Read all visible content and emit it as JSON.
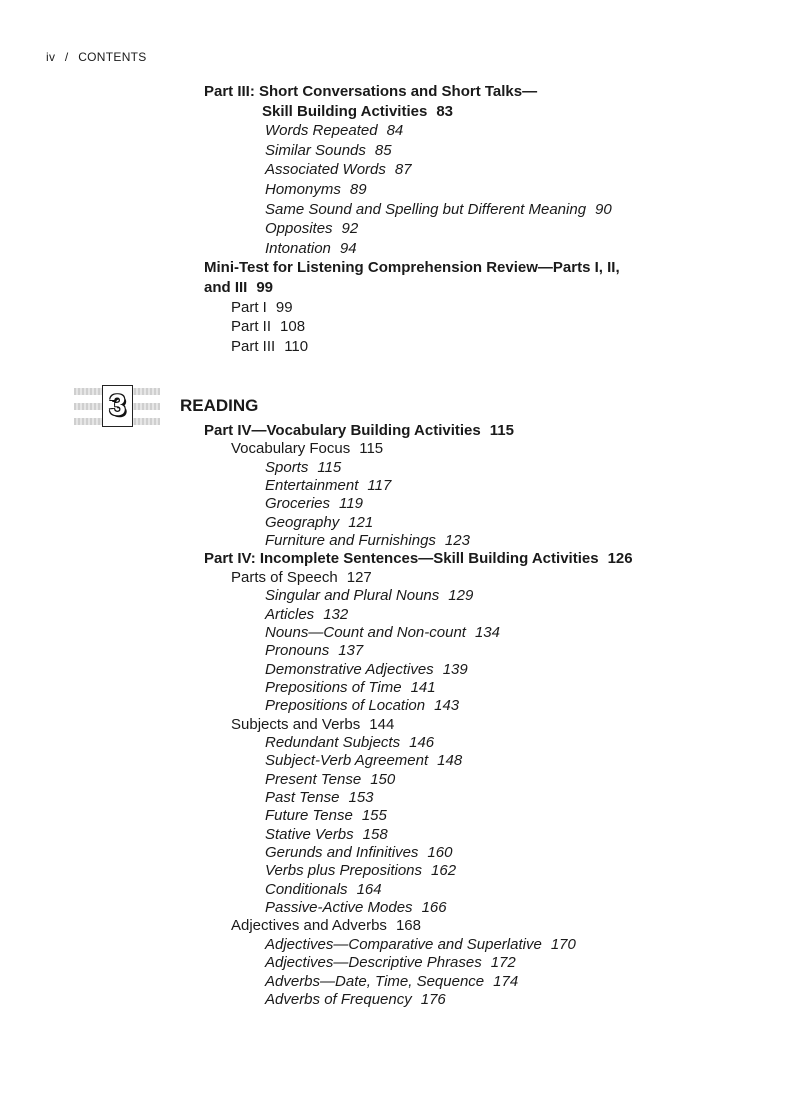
{
  "header": {
    "page": "iv",
    "sep": "/",
    "section": "CONTENTS"
  },
  "chapter": {
    "number": "3",
    "title": "READING"
  },
  "lines_top": [
    {
      "level": 0,
      "bold": true,
      "text": "Part III: Short Conversations and Short Talks—",
      "page": ""
    },
    {
      "level": 2,
      "bold": true,
      "text": "Skill Building Activities",
      "page": "83",
      "indent": "sub"
    },
    {
      "level": 2,
      "text": "Words Repeated",
      "page": "84"
    },
    {
      "level": 2,
      "text": "Similar Sounds",
      "page": "85"
    },
    {
      "level": 2,
      "text": "Associated Words",
      "page": "87"
    },
    {
      "level": 2,
      "text": "Homonyms",
      "page": "89"
    },
    {
      "level": 2,
      "text": "Same Sound and Spelling but Different Meaning",
      "page": "90"
    },
    {
      "level": 2,
      "text": "Opposites",
      "page": "92"
    },
    {
      "level": 2,
      "text": "Intonation",
      "page": "94"
    },
    {
      "level": 0,
      "bold": true,
      "text": "Mini-Test for Listening Comprehension Review—Parts I, II,",
      "page": ""
    },
    {
      "level": 0,
      "bold": true,
      "text": "and III",
      "page": "99"
    },
    {
      "level": 1,
      "text": "Part I",
      "page": "99"
    },
    {
      "level": 1,
      "text": "Part II",
      "page": "108"
    },
    {
      "level": 1,
      "text": "Part III",
      "page": "110"
    }
  ],
  "lines_bottom": [
    {
      "level": 0,
      "bold": true,
      "text": "Part IV—Vocabulary Building Activities",
      "page": "115"
    },
    {
      "level": 1,
      "text": "Vocabulary Focus",
      "page": "115"
    },
    {
      "level": 2,
      "text": "Sports",
      "page": "115"
    },
    {
      "level": 2,
      "text": "Entertainment",
      "page": "117"
    },
    {
      "level": 2,
      "text": "Groceries",
      "page": "119"
    },
    {
      "level": 2,
      "text": "Geography",
      "page": "121"
    },
    {
      "level": 2,
      "text": "Furniture and Furnishings",
      "page": "123"
    },
    {
      "level": 0,
      "bold": true,
      "text": "Part IV: Incomplete Sentences—Skill Building Activities",
      "page": "126"
    },
    {
      "level": 1,
      "text": "Parts of Speech",
      "page": "127"
    },
    {
      "level": 2,
      "text": "Singular and Plural Nouns",
      "page": "129"
    },
    {
      "level": 2,
      "text": "Articles",
      "page": "132"
    },
    {
      "level": 2,
      "text": "Nouns—Count and Non-count",
      "page": "134"
    },
    {
      "level": 2,
      "text": "Pronouns",
      "page": "137"
    },
    {
      "level": 2,
      "text": "Demonstrative Adjectives",
      "page": "139"
    },
    {
      "level": 2,
      "text": "Prepositions of Time",
      "page": "141"
    },
    {
      "level": 2,
      "text": "Prepositions of Location",
      "page": "143"
    },
    {
      "level": 1,
      "text": "Subjects and Verbs",
      "page": "144"
    },
    {
      "level": 2,
      "text": "Redundant Subjects",
      "page": "146"
    },
    {
      "level": 2,
      "text": "Subject-Verb Agreement",
      "page": "148"
    },
    {
      "level": 2,
      "text": "Present Tense",
      "page": "150"
    },
    {
      "level": 2,
      "text": "Past Tense",
      "page": "153"
    },
    {
      "level": 2,
      "text": "Future Tense",
      "page": "155"
    },
    {
      "level": 2,
      "text": "Stative Verbs",
      "page": "158"
    },
    {
      "level": 2,
      "text": "Gerunds and Infinitives",
      "page": "160"
    },
    {
      "level": 2,
      "text": "Verbs plus Prepositions",
      "page": "162"
    },
    {
      "level": 2,
      "text": "Conditionals",
      "page": "164"
    },
    {
      "level": 2,
      "text": "Passive-Active Modes",
      "page": "166"
    },
    {
      "level": 1,
      "text": "Adjectives and Adverbs",
      "page": "168"
    },
    {
      "level": 2,
      "text": "Adjectives—Comparative and Superlative",
      "page": "170"
    },
    {
      "level": 2,
      "text": "Adjectives—Descriptive Phrases",
      "page": "172"
    },
    {
      "level": 2,
      "text": "Adverbs—Date, Time, Sequence",
      "page": "174"
    },
    {
      "level": 2,
      "text": "Adverbs of Frequency",
      "page": "176"
    }
  ]
}
